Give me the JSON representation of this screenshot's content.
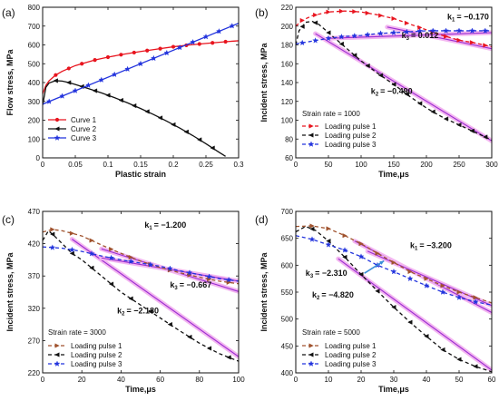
{
  "chart_data": [
    {
      "panel_label": "(a)",
      "type": "line",
      "xlabel": "Plastic strain",
      "ylabel": "Flow stress, MPa",
      "xlim": [
        0,
        0.3
      ],
      "ylim": [
        0,
        800
      ],
      "xticks": [
        0,
        0.05,
        0.1,
        0.15,
        0.2,
        0.25,
        0.3
      ],
      "xtick_labels": [
        "0",
        "0.05",
        "0.1",
        "0.15",
        "0.2",
        "0.25",
        "0.3"
      ],
      "yticks": [
        0,
        100,
        200,
        300,
        400,
        500,
        600,
        700,
        800
      ],
      "ytick_labels": [
        "0",
        "100",
        "200",
        "300",
        "400",
        "500",
        "600",
        "700",
        "800"
      ],
      "legend_position": "bottom-left",
      "series": [
        {
          "name": "Curve 1",
          "color": "#e8141e",
          "marker": "circle",
          "dash": "",
          "x": [
            0,
            0.005,
            0.01,
            0.02,
            0.03,
            0.04,
            0.05,
            0.06,
            0.08,
            0.1,
            0.12,
            0.15,
            0.18,
            0.2,
            0.22,
            0.25,
            0.28,
            0.3
          ],
          "y": [
            340,
            385,
            410,
            440,
            460,
            475,
            490,
            500,
            520,
            535,
            548,
            565,
            580,
            590,
            598,
            608,
            617,
            622
          ],
          "markers_x": [
            0.02,
            0.04,
            0.06,
            0.08,
            0.1,
            0.12,
            0.14,
            0.16,
            0.18,
            0.2,
            0.22,
            0.24,
            0.26,
            0.28
          ]
        },
        {
          "name": "Curve 2",
          "color": "#111111",
          "marker": "triangle-left",
          "dash": "",
          "x": [
            0,
            0.005,
            0.01,
            0.02,
            0.03,
            0.04,
            0.05,
            0.07,
            0.09,
            0.11,
            0.13,
            0.15,
            0.17,
            0.19,
            0.21,
            0.23,
            0.25,
            0.27,
            0.28
          ],
          "y": [
            280,
            375,
            398,
            410,
            408,
            400,
            390,
            368,
            345,
            320,
            292,
            262,
            230,
            195,
            158,
            118,
            75,
            30,
            8
          ],
          "markers_x": [
            0.02,
            0.04,
            0.06,
            0.08,
            0.1,
            0.12,
            0.14,
            0.16,
            0.18,
            0.2,
            0.22,
            0.24,
            0.26
          ]
        },
        {
          "name": "Curve 3",
          "color": "#2233dd",
          "marker": "star",
          "dash": "",
          "x": [
            0,
            0.3
          ],
          "y": [
            285,
            715
          ],
          "markers_x": [
            0.01,
            0.03,
            0.05,
            0.07,
            0.09,
            0.11,
            0.13,
            0.15,
            0.17,
            0.19,
            0.21,
            0.23,
            0.25,
            0.27,
            0.29
          ]
        }
      ]
    },
    {
      "panel_label": "(b)",
      "type": "line",
      "xlabel": "Time,μs",
      "ylabel": "Incident stress, MPa",
      "xlim": [
        0,
        300
      ],
      "ylim": [
        60,
        220
      ],
      "xticks": [
        0,
        50,
        100,
        150,
        200,
        250,
        300
      ],
      "xtick_labels": [
        "0",
        "50",
        "100",
        "150",
        "200",
        "250",
        "300"
      ],
      "yticks": [
        60,
        80,
        100,
        120,
        140,
        160,
        180,
        200,
        220
      ],
      "ytick_labels": [
        "60",
        "80",
        "100",
        "120",
        "140",
        "160",
        "180",
        "200",
        "220"
      ],
      "strain_rate_label": "Strain rate = 1000",
      "legend_position": "bottom-left",
      "annotations": [
        {
          "sub": "1",
          "value": "= −0.170",
          "x": 232,
          "y": 207
        },
        {
          "sub": "3",
          "value": "= 0.012",
          "x": 162,
          "y": 187
        },
        {
          "sub": "2",
          "value": "= −0.490",
          "x": 115,
          "y": 128
        }
      ],
      "fit_lines": [
        {
          "x": [
            140,
            300
          ],
          "y": [
            199,
            176
          ]
        },
        {
          "x": [
            30,
            300
          ],
          "y": [
            192,
            78
          ]
        },
        {
          "x": [
            50,
            300
          ],
          "y": [
            187,
            193
          ]
        }
      ],
      "series": [
        {
          "name": "Loading pulse 1",
          "color": "#e8141e",
          "marker": "triangle-right",
          "dash": "4,3",
          "x": [
            0,
            10,
            25,
            50,
            75,
            100,
            125,
            150,
            175,
            200,
            225,
            250,
            275,
            300
          ],
          "y": [
            200,
            206,
            211,
            215,
            216,
            215,
            212,
            208,
            202,
            196,
            190,
            185,
            182,
            178
          ],
          "markers_x": [
            10,
            30,
            50,
            70,
            90,
            110,
            130,
            150,
            170,
            190,
            210,
            230,
            250,
            270,
            290
          ]
        },
        {
          "name": "Loading pulse 2",
          "color": "#111111",
          "marker": "triangle-left",
          "dash": "4,3",
          "x": [
            0,
            5,
            15,
            25,
            35,
            50,
            75,
            100,
            125,
            150,
            175,
            200,
            225,
            250,
            275,
            300
          ],
          "y": [
            180,
            195,
            204,
            205,
            202,
            193,
            178,
            163,
            150,
            138,
            125,
            113,
            103,
            95,
            87,
            79
          ],
          "markers_x": [
            10,
            30,
            50,
            70,
            90,
            110,
            130,
            150,
            170,
            190,
            210,
            230,
            250,
            270,
            290
          ]
        },
        {
          "name": "Loading pulse 3",
          "color": "#2233dd",
          "marker": "star",
          "dash": "4,3",
          "x": [
            0,
            25,
            50,
            75,
            100,
            125,
            150,
            175,
            200,
            225,
            250,
            275,
            300
          ],
          "y": [
            181,
            184,
            187,
            189,
            190,
            192,
            193,
            194,
            195,
            195,
            195,
            195,
            195
          ],
          "markers_x": [
            10,
            30,
            50,
            70,
            90,
            110,
            130,
            150,
            170,
            190,
            210,
            230,
            250,
            270,
            290
          ]
        }
      ]
    },
    {
      "panel_label": "(c)",
      "type": "line",
      "xlabel": "Time,μs",
      "ylabel": "Incident stress, MPa",
      "xlim": [
        0,
        100
      ],
      "ylim": [
        220,
        470
      ],
      "xticks": [
        0,
        20,
        40,
        60,
        80,
        100
      ],
      "xtick_labels": [
        "0",
        "20",
        "40",
        "60",
        "80",
        "100"
      ],
      "yticks": [
        220,
        270,
        320,
        370,
        420,
        470
      ],
      "ytick_labels": [
        "220",
        "270",
        "320",
        "370",
        "420",
        "470"
      ],
      "strain_rate_label": "Strain rate = 3000",
      "legend_position": "bottom-left",
      "annotations": [
        {
          "sub": "1",
          "value": "= −1.200",
          "x": 52,
          "y": 445
        },
        {
          "sub": "3",
          "value": "= −0.667",
          "x": 65,
          "y": 352
        },
        {
          "sub": "2",
          "value": "= −2.180",
          "x": 38,
          "y": 312
        }
      ],
      "fit_lines": [
        {
          "x": [
            30,
            100
          ],
          "y": [
            412,
            346
          ]
        },
        {
          "x": [
            15,
            100
          ],
          "y": [
            427,
            245
          ]
        },
        {
          "x": [
            30,
            100
          ],
          "y": [
            398,
            362
          ]
        }
      ],
      "series": [
        {
          "name": "Loading pulse 1",
          "color": "#a0522d",
          "marker": "triangle-right",
          "dash": "4,3",
          "x": [
            0,
            5,
            10,
            20,
            30,
            40,
            50,
            60,
            70,
            80,
            90,
            100
          ],
          "y": [
            438,
            442,
            440,
            432,
            418,
            405,
            393,
            383,
            375,
            368,
            362,
            358
          ],
          "markers_x": [
            5,
            15,
            25,
            35,
            45,
            55,
            65,
            75,
            85,
            95
          ]
        },
        {
          "name": "Loading pulse 2",
          "color": "#111111",
          "marker": "triangle-left",
          "dash": "4,3",
          "x": [
            0,
            3,
            6,
            10,
            15,
            20,
            30,
            40,
            50,
            60,
            70,
            80,
            90,
            100
          ],
          "y": [
            425,
            440,
            432,
            420,
            405,
            395,
            370,
            345,
            325,
            305,
            285,
            266,
            250,
            238
          ],
          "markers_x": [
            5,
            15,
            25,
            35,
            45,
            55,
            65,
            75,
            85,
            95
          ]
        },
        {
          "name": "Loading pulse 3",
          "color": "#2233dd",
          "marker": "star",
          "dash": "4,3",
          "x": [
            0,
            10,
            20,
            30,
            40,
            50,
            60,
            70,
            80,
            90,
            100
          ],
          "y": [
            415,
            413,
            408,
            401,
            395,
            390,
            385,
            378,
            372,
            366,
            362
          ],
          "markers_x": [
            5,
            15,
            25,
            35,
            45,
            55,
            65,
            75,
            85,
            95
          ]
        }
      ]
    },
    {
      "panel_label": "(d)",
      "type": "line",
      "xlabel": "Time,μs",
      "ylabel": "Incident stress, MPa",
      "xlim": [
        0,
        60
      ],
      "ylim": [
        400,
        700
      ],
      "xticks": [
        0,
        10,
        20,
        30,
        40,
        50,
        60
      ],
      "xtick_labels": [
        "0",
        "10",
        "20",
        "30",
        "40",
        "50",
        "60"
      ],
      "yticks": [
        400,
        450,
        500,
        550,
        600,
        650,
        700
      ],
      "ytick_labels": [
        "400",
        "450",
        "500",
        "550",
        "600",
        "650",
        "700"
      ],
      "strain_rate_label": "Strain rate = 5000",
      "legend_position": "bottom-left",
      "annotations": [
        {
          "sub": "1",
          "value": "= −3.200",
          "x": 35,
          "y": 632
        },
        {
          "sub": "3",
          "value": "= −2.310",
          "x": 3,
          "y": 580
        },
        {
          "sub": "2",
          "value": "= −4.820",
          "x": 5,
          "y": 540
        }
      ],
      "arrow": {
        "from": [
          21,
          585
        ],
        "to": [
          27,
          608
        ]
      },
      "fit_lines": [
        {
          "x": [
            18,
            60
          ],
          "y": [
            645,
            512
          ]
        },
        {
          "x": [
            13,
            60
          ],
          "y": [
            612,
            405
          ]
        },
        {
          "x": [
            22,
            60
          ],
          "y": [
            626,
            525
          ]
        }
      ],
      "series": [
        {
          "name": "Loading pulse 1",
          "color": "#a0522d",
          "marker": "triangle-right",
          "dash": "4,3",
          "x": [
            0,
            5,
            10,
            15,
            20,
            25,
            30,
            35,
            40,
            45,
            50,
            55,
            60
          ],
          "y": [
            672,
            673,
            668,
            655,
            640,
            622,
            605,
            588,
            575,
            562,
            550,
            540,
            530
          ],
          "markers_x": [
            5,
            10,
            15,
            20,
            25,
            30,
            35,
            40,
            45,
            50,
            55
          ]
        },
        {
          "name": "Loading pulse 2",
          "color": "#111111",
          "marker": "triangle-left",
          "dash": "4,3",
          "x": [
            0,
            3,
            6,
            10,
            15,
            20,
            25,
            30,
            35,
            40,
            45,
            50,
            55,
            60
          ],
          "y": [
            662,
            672,
            665,
            645,
            615,
            583,
            552,
            522,
            494,
            468,
            443,
            425,
            412,
            402
          ],
          "markers_x": [
            5,
            10,
            15,
            20,
            25,
            30,
            35,
            40,
            45,
            50,
            55
          ]
        },
        {
          "name": "Loading pulse 3",
          "color": "#2233dd",
          "marker": "star",
          "dash": "4,3",
          "x": [
            0,
            5,
            10,
            15,
            20,
            25,
            30,
            35,
            40,
            45,
            50,
            55,
            60
          ],
          "y": [
            655,
            648,
            638,
            628,
            616,
            600,
            588,
            575,
            562,
            550,
            540,
            532,
            526
          ],
          "markers_x": [
            5,
            10,
            15,
            20,
            25,
            30,
            35,
            40,
            45,
            50,
            55
          ]
        }
      ]
    }
  ]
}
